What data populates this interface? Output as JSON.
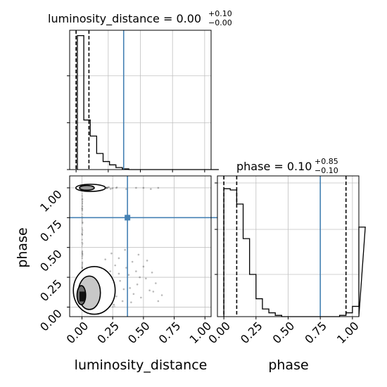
{
  "chart_data": {
    "type": "corner",
    "parameters": [
      "luminosity_distance",
      "phase"
    ],
    "truths": {
      "luminosity_distance": 0.37,
      "phase": 0.75
    },
    "colors": {
      "truth": "#4682b4",
      "hist": "#000000",
      "grid": "#c0c0c0"
    },
    "grid": true,
    "panels": [
      {
        "id": "luminosity_distance-hist",
        "type": "histogram",
        "title": "luminosity_distance = 0.00",
        "sup": "+0.10",
        "sub": "−0.00",
        "xlim": [
          -0.05,
          1.05
        ],
        "bin_edges": [
          -0.05,
          0.0,
          0.05,
          0.1,
          0.15,
          0.2,
          0.25,
          0.3,
          0.35,
          0.4,
          0.45,
          0.5,
          0.55,
          0.6,
          0.65,
          0.7,
          0.75,
          0.8,
          0.85,
          0.9,
          0.95,
          1.0,
          1.05
        ],
        "counts": [
          100,
          37,
          25,
          12,
          6,
          3.5,
          1.5,
          0.5,
          0,
          0,
          0,
          0,
          0,
          0,
          0,
          0,
          0,
          0,
          0,
          0,
          0,
          0
        ],
        "quantiles": [
          0.0,
          0.1
        ],
        "yticks": [
          0,
          35,
          70
        ]
      },
      {
        "id": "phase-hist",
        "type": "histogram",
        "title": "phase = 0.10",
        "sup": "+0.85",
        "sub": "−0.10",
        "xlim": [
          -0.05,
          1.05
        ],
        "bin_edges": [
          -0.05,
          0.0,
          0.05,
          0.1,
          0.15,
          0.2,
          0.25,
          0.3,
          0.35,
          0.4,
          0.45,
          0.5,
          0.55,
          0.6,
          0.65,
          0.7,
          0.75,
          0.8,
          0.85,
          0.9,
          0.95,
          1.0,
          1.05
        ],
        "counts": [
          100,
          99,
          88,
          61,
          33,
          14,
          6,
          3,
          1,
          0,
          0,
          0,
          0,
          0,
          0,
          0,
          0,
          0,
          1,
          3,
          8,
          70
        ],
        "quantiles": [
          0.0,
          0.1,
          0.95
        ]
      },
      {
        "id": "joint",
        "type": "scatter-contour",
        "xlim": [
          -0.1,
          1.05
        ],
        "ylim": [
          -0.08,
          1.1
        ],
        "xlabel": "luminosity_distance",
        "ylabel": "phase",
        "xticks": [
          "0.00",
          "0.25",
          "0.50",
          "0.75",
          "1.00"
        ],
        "yticks": [
          "0.00",
          "0.25",
          "0.50",
          "0.75",
          "1.00"
        ],
        "scatter_points": [
          [
            0.21,
            0.12
          ],
          [
            0.25,
            0.18
          ],
          [
            0.28,
            0.09
          ],
          [
            0.31,
            0.22
          ],
          [
            0.34,
            0.15
          ],
          [
            0.38,
            0.27
          ],
          [
            0.42,
            0.11
          ],
          [
            0.45,
            0.19
          ],
          [
            0.48,
            0.08
          ],
          [
            0.52,
            0.24
          ],
          [
            0.55,
            0.14
          ],
          [
            0.6,
            0.2
          ],
          [
            0.65,
            0.1
          ],
          [
            0.23,
            0.3
          ],
          [
            0.27,
            0.35
          ],
          [
            0.3,
            0.28
          ],
          [
            0.33,
            0.05
          ],
          [
            0.36,
            0.33
          ],
          [
            0.4,
            0.04
          ],
          [
            0.44,
            0.3
          ],
          [
            0.5,
            0.34
          ],
          [
            0.57,
            0.29
          ],
          [
            0.62,
            0.05
          ],
          [
            0.19,
            0.4
          ],
          [
            0.24,
            0.45
          ],
          [
            0.3,
            0.41
          ],
          [
            0.35,
            0.48
          ],
          [
            0.41,
            0.38
          ],
          [
            0.46,
            0.44
          ],
          [
            0.53,
            0.39
          ],
          [
            0.26,
            0.02
          ],
          [
            0.39,
            0.16
          ],
          [
            0.47,
            0.25
          ],
          [
            0.58,
            0.13
          ],
          [
            0.2,
            1.0
          ],
          [
            0.28,
            1.0
          ],
          [
            0.36,
            0.99
          ],
          [
            0.44,
            1.0
          ],
          [
            0.5,
            1.0
          ],
          [
            0.56,
            0.99
          ],
          [
            0.62,
            1.0
          ]
        ],
        "contour_levels": 3
      }
    ]
  }
}
